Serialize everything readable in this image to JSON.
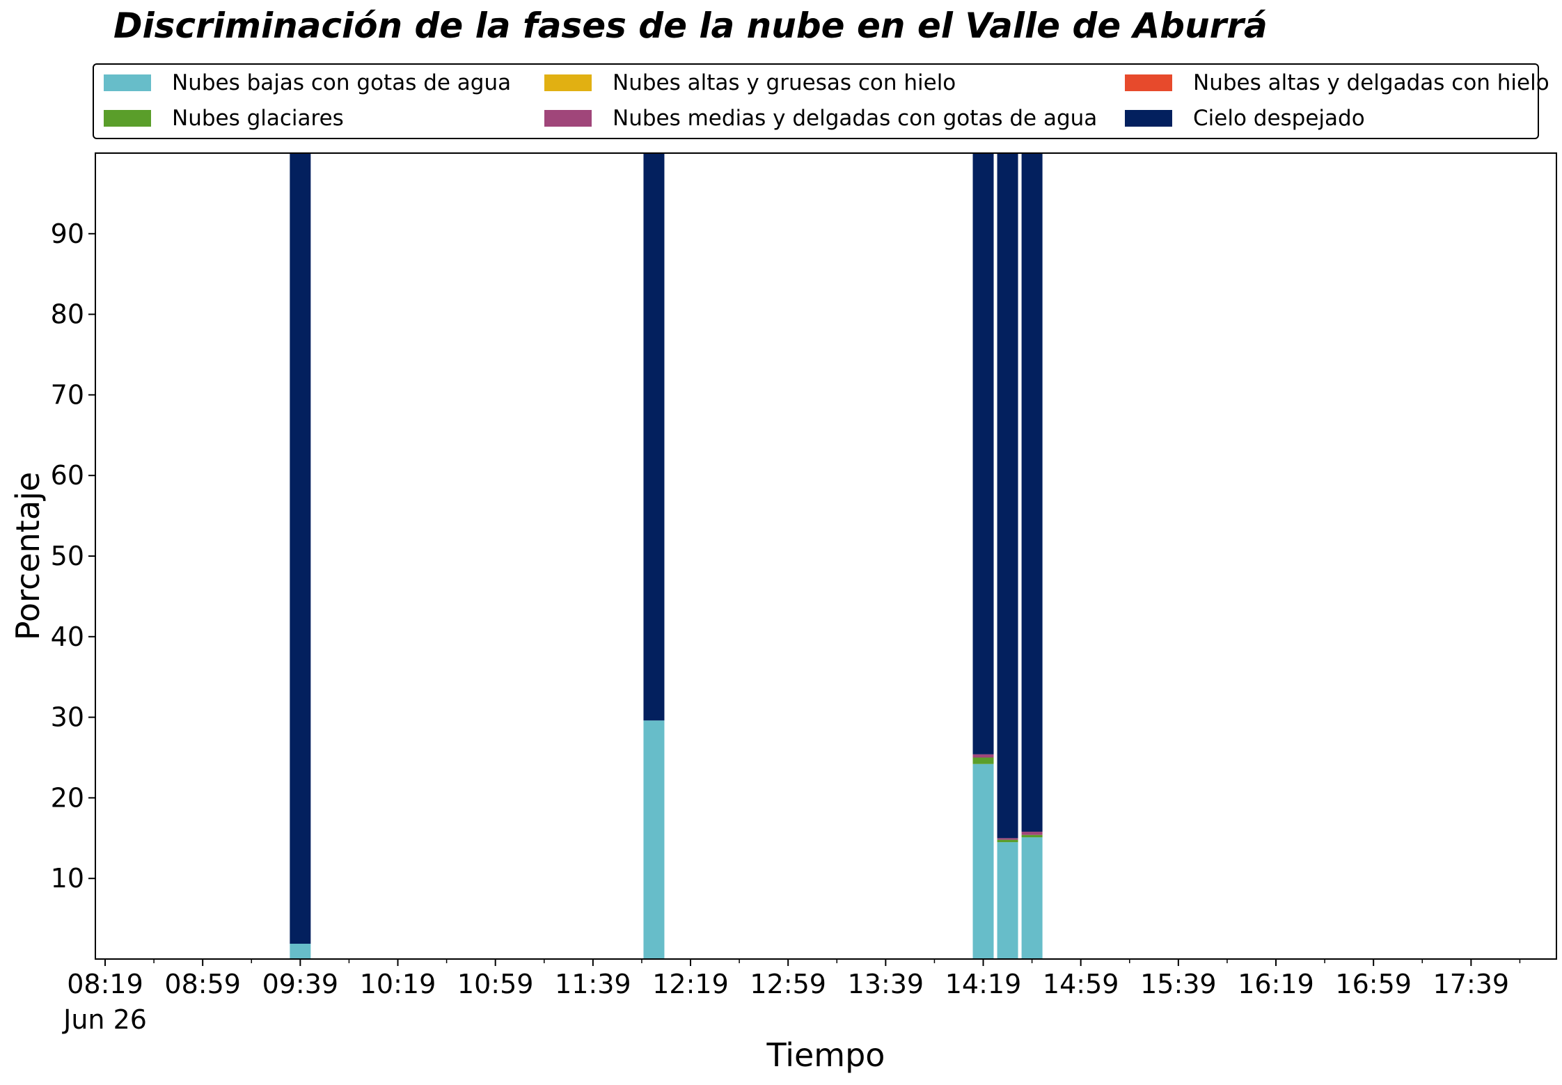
{
  "chart_data": {
    "type": "bar",
    "stacked": true,
    "title": "Discriminación de la fases de la nube en el Valle de Aburrá",
    "xlabel": "Tiempo",
    "ylabel": "Porcentaje",
    "ylim": [
      0,
      100
    ],
    "xlim": [
      "08:15",
      "18:14"
    ],
    "yticks": [
      10,
      20,
      30,
      40,
      50,
      60,
      70,
      80,
      90
    ],
    "xticks": [
      {
        "label": "08:19",
        "sublabel": "Jun 26",
        "time": "08:19"
      },
      {
        "label": "08:59",
        "time": "08:59"
      },
      {
        "label": "09:39",
        "time": "09:39"
      },
      {
        "label": "10:19",
        "time": "10:19"
      },
      {
        "label": "10:59",
        "time": "10:59"
      },
      {
        "label": "11:39",
        "time": "11:39"
      },
      {
        "label": "12:19",
        "time": "12:19"
      },
      {
        "label": "12:59",
        "time": "12:59"
      },
      {
        "label": "13:39",
        "time": "13:39"
      },
      {
        "label": "14:19",
        "time": "14:19"
      },
      {
        "label": "14:59",
        "time": "14:59"
      },
      {
        "label": "15:39",
        "time": "15:39"
      },
      {
        "label": "16:19",
        "time": "16:19"
      },
      {
        "label": "16:59",
        "time": "16:59"
      },
      {
        "label": "17:39",
        "time": "17:39"
      }
    ],
    "minor_xticks": [
      "08:39",
      "09:19",
      "09:59",
      "10:39",
      "11:19",
      "11:59",
      "12:39",
      "13:19",
      "13:59",
      "14:39",
      "15:19",
      "15:59",
      "16:39",
      "17:19",
      "17:59"
    ],
    "legend_position": "top",
    "grid": false,
    "x": [
      "09:39",
      "12:04",
      "14:19",
      "14:29",
      "14:39"
    ],
    "series": [
      {
        "name": "Nubes bajas con gotas de agua",
        "color": "#67bdc9",
        "values": [
          1.9,
          29.6,
          24.2,
          14.5,
          15.1
        ]
      },
      {
        "name": "Nubes glaciares",
        "color": "#5a9e2a",
        "values": [
          0,
          0,
          0.8,
          0.3,
          0.3
        ]
      },
      {
        "name": "Nubes altas y gruesas con hielo",
        "color": "#e1b012",
        "values": [
          0,
          0,
          0,
          0,
          0
        ]
      },
      {
        "name": "Nubes medias y delgadas con gotas de agua",
        "color": "#a0467a",
        "values": [
          0,
          0,
          0.4,
          0.2,
          0.4
        ]
      },
      {
        "name": "Nubes altas y delgadas con hielo",
        "color": "#e74a2c",
        "values": [
          0,
          0,
          0,
          0,
          0
        ]
      },
      {
        "name": "Cielo despejado",
        "color": "#03205e",
        "values": [
          98.1,
          70.4,
          74.6,
          85.0,
          84.2
        ]
      }
    ]
  }
}
